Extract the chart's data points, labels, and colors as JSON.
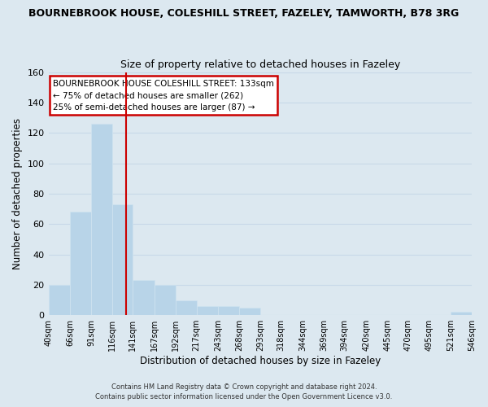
{
  "title_line1": "BOURNEBROOK HOUSE, COLESHILL STREET, FAZELEY, TAMWORTH, B78 3RG",
  "title_line2": "Size of property relative to detached houses in Fazeley",
  "xlabel": "Distribution of detached houses by size in Fazeley",
  "ylabel": "Number of detached properties",
  "bin_edges": [
    40,
    66,
    91,
    116,
    141,
    167,
    192,
    217,
    243,
    268,
    293,
    318,
    344,
    369,
    394,
    420,
    445,
    470,
    495,
    521,
    546
  ],
  "bar_heights": [
    20,
    68,
    126,
    73,
    23,
    20,
    10,
    6,
    6,
    5,
    0,
    0,
    0,
    0,
    0,
    0,
    0,
    0,
    0,
    2
  ],
  "bar_color": "#b8d4e8",
  "bar_edgecolor": "#d0e4f0",
  "bar_linewidth": 0.5,
  "vline_x": 133,
  "vline_color": "#cc0000",
  "ylim": [
    0,
    160
  ],
  "yticks": [
    0,
    20,
    40,
    60,
    80,
    100,
    120,
    140,
    160
  ],
  "annotation_text": "BOURNEBROOK HOUSE COLESHILL STREET: 133sqm\n← 75% of detached houses are smaller (262)\n25% of semi-detached houses are larger (87) →",
  "annotation_box_color": "#ffffff",
  "annotation_box_edgecolor": "#cc0000",
  "grid_color": "#c8d8e8",
  "background_color": "#dce8f0",
  "plot_bg_color": "#dce8f0",
  "footer_line1": "Contains HM Land Registry data © Crown copyright and database right 2024.",
  "footer_line2": "Contains public sector information licensed under the Open Government Licence v3.0.",
  "tick_labels": [
    "40sqm",
    "66sqm",
    "91sqm",
    "116sqm",
    "141sqm",
    "167sqm",
    "192sqm",
    "217sqm",
    "243sqm",
    "268sqm",
    "293sqm",
    "318sqm",
    "344sqm",
    "369sqm",
    "394sqm",
    "420sqm",
    "445sqm",
    "470sqm",
    "495sqm",
    "521sqm",
    "546sqm"
  ]
}
